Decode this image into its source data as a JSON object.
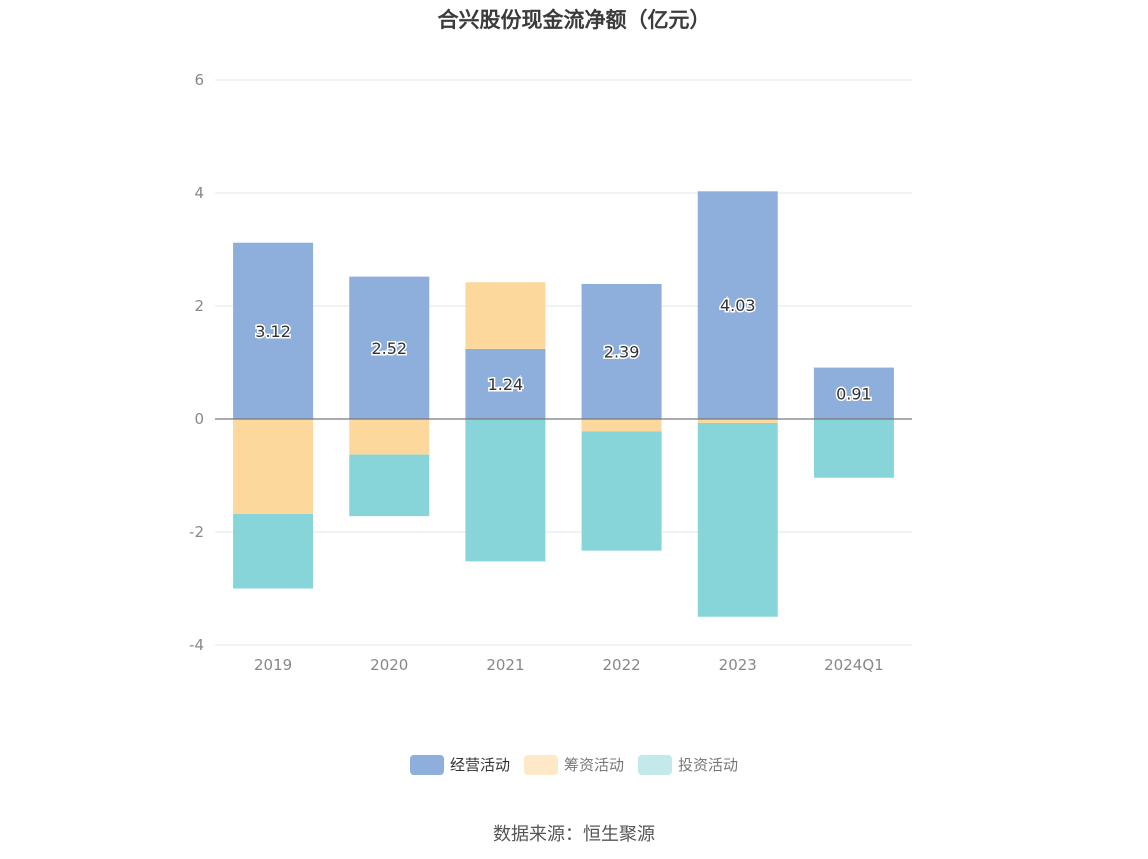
{
  "chart_data": {
    "type": "bar",
    "stacked": true,
    "title": "合兴股份现金流净额（亿元）",
    "categories": [
      "2019",
      "2020",
      "2021",
      "2022",
      "2023",
      "2024Q1"
    ],
    "ylim": [
      -4,
      6
    ],
    "yticks": [
      6,
      4,
      2,
      0,
      -2,
      -4
    ],
    "grid": true,
    "legend_position": "bottom",
    "series": [
      {
        "name": "经营活动",
        "color": "#8eaedb",
        "values": [
          3.12,
          2.52,
          1.24,
          2.39,
          4.03,
          0.91
        ],
        "labels": [
          "3.12",
          "2.52",
          "1.24",
          "2.39",
          "4.03",
          "0.91"
        ]
      },
      {
        "name": "筹资活动",
        "color": "#fdd89c",
        "values": [
          -1.68,
          -0.63,
          1.18,
          -0.22,
          -0.07,
          0.0
        ]
      },
      {
        "name": "投资活动",
        "color": "#87d5d9",
        "values": [
          -1.32,
          -1.09,
          -2.52,
          -2.11,
          -3.43,
          -1.04
        ]
      }
    ],
    "legend_swatches": [
      "#8eaedb",
      "#fde9c7",
      "#c3e9eb"
    ]
  },
  "source": "数据来源：恒生聚源"
}
